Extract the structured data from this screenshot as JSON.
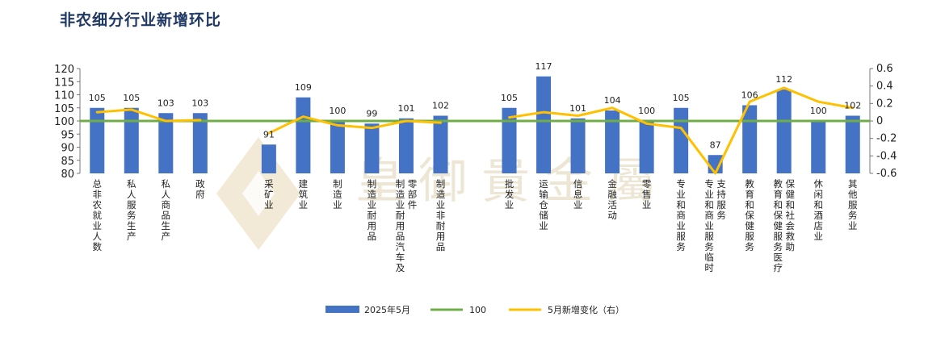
{
  "title": "非农细分行业新增环比",
  "watermark": "皇御貴金屬",
  "colors": {
    "bar": "#4472c4",
    "baseline": "#70ad47",
    "change_line": "#ffc000"
  },
  "chart_data": {
    "type": "bar",
    "categories": [
      "总非农就业人数",
      "私人服务生产",
      "私人商品生产",
      "政府",
      "",
      "采矿业",
      "建筑业",
      "制造业",
      "制造业耐用品",
      "制造业耐用品汽车及零部件",
      "制造业非耐用品",
      "",
      "批发业",
      "运输仓储业",
      "信息业",
      "金融活动",
      "零售业",
      "专业和商业服务",
      "专业和商业服务临时支持服务",
      "教育和保健服务",
      "教育和保健服务医疗保健和社会救助",
      "休闲和酒店业",
      "其他服务业"
    ],
    "category_lines": [
      [
        "总非农就业人数"
      ],
      [
        "私人服务生产"
      ],
      [
        "私人商品生产"
      ],
      [
        "政府"
      ],
      [],
      [
        "采矿业"
      ],
      [
        "建筑业"
      ],
      [
        "制造业"
      ],
      [
        "制造业耐用品"
      ],
      [
        "制造业耐用品汽车及",
        "零部件"
      ],
      [
        "制造业非耐用品"
      ],
      [],
      [
        "批发业"
      ],
      [
        "运输仓储业"
      ],
      [
        "信息业"
      ],
      [
        "金融活动"
      ],
      [
        "零售业"
      ],
      [
        "专业和商业服务"
      ],
      [
        "专业和商业服务临时",
        "支持服务"
      ],
      [
        "教育和保健服务"
      ],
      [
        "教育和保健服务医疗",
        "保健和社会救助"
      ],
      [
        "休闲和酒店业"
      ],
      [
        "其他服务业"
      ]
    ],
    "series": [
      {
        "name": "2025年5月",
        "type": "bar",
        "axis": "left",
        "values": [
          105,
          105,
          103,
          103,
          null,
          91,
          109,
          100,
          99,
          101,
          102,
          null,
          105,
          117,
          101,
          104,
          100,
          105,
          87,
          106,
          112,
          100,
          102
        ]
      },
      {
        "name": "100",
        "type": "line",
        "axis": "left",
        "values": [
          100,
          100,
          100,
          100,
          100,
          100,
          100,
          100,
          100,
          100,
          100,
          100,
          100,
          100,
          100,
          100,
          100,
          100,
          100,
          100,
          100,
          100,
          100
        ]
      },
      {
        "name": "5月新增变化（右）",
        "type": "line",
        "axis": "right",
        "values": [
          0.1,
          0.13,
          0.0,
          0.01,
          null,
          -0.14,
          0.05,
          -0.05,
          -0.08,
          0.0,
          -0.02,
          null,
          0.04,
          0.1,
          0.06,
          0.15,
          -0.03,
          -0.08,
          -0.6,
          0.22,
          0.38,
          0.22,
          0.15
        ]
      }
    ],
    "data_labels": [
      "105",
      "105",
      "103",
      "103",
      "",
      "91",
      "109",
      "100",
      "99",
      "101",
      "102",
      "",
      "105",
      "117",
      "101",
      "104",
      "100",
      "105",
      "87",
      "106",
      "112",
      "100",
      "102"
    ],
    "y_left": {
      "min": 80,
      "max": 120,
      "step": 5,
      "ticks": [
        "80",
        "85",
        "90",
        "95",
        "100",
        "105",
        "110",
        "115",
        "120"
      ]
    },
    "y_right": {
      "min": -0.6,
      "max": 0.6,
      "step": 0.2,
      "ticks": [
        "-0.6",
        "-0.4",
        "-0.2",
        "0",
        "0.2",
        "0.4",
        "0.6"
      ]
    },
    "legend": {
      "position": "bottom",
      "items": [
        "2025年5月",
        "100",
        "5月新增变化（右）"
      ]
    },
    "grid": false
  }
}
